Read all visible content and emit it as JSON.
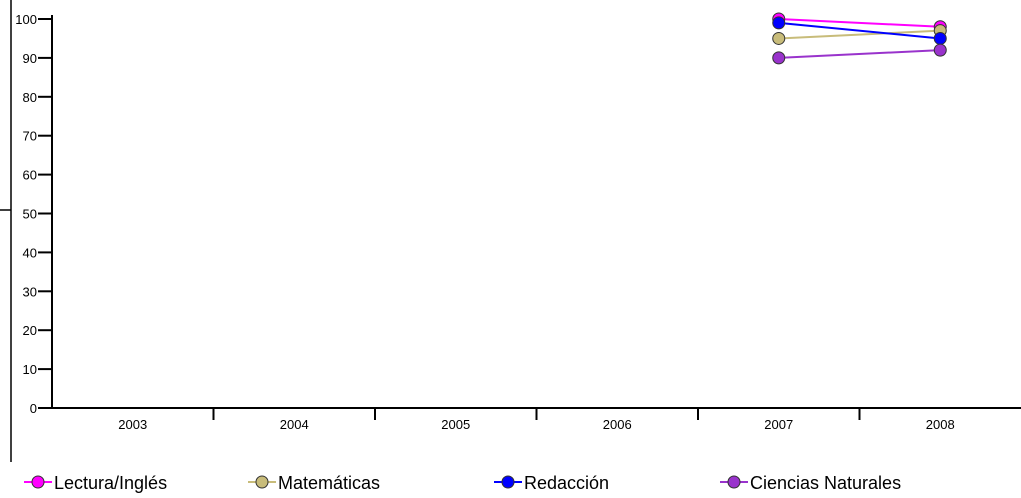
{
  "chart_data": {
    "type": "line",
    "title": "",
    "xlabel": "",
    "ylabel": "",
    "categories": [
      "2003",
      "2004",
      "2005",
      "2006",
      "2007",
      "2008"
    ],
    "ylim": [
      0,
      100
    ],
    "yticks": [
      "0",
      "10",
      "20",
      "30",
      "40",
      "50",
      "60",
      "70",
      "80",
      "90",
      "100"
    ],
    "grid": false,
    "legend_position": "bottom",
    "series": [
      {
        "name": "Lectura/Inglés",
        "color": "#ff00ff",
        "values": [
          null,
          null,
          null,
          null,
          100,
          98
        ]
      },
      {
        "name": "Matemáticas",
        "color": "#c8bc7a",
        "values": [
          null,
          null,
          null,
          null,
          95,
          97
        ]
      },
      {
        "name": "Redacción",
        "color": "#0000ff",
        "values": [
          null,
          null,
          null,
          null,
          99,
          95
        ]
      },
      {
        "name": "Ciencias Naturales",
        "color": "#9933cc",
        "values": [
          null,
          null,
          null,
          null,
          90,
          92
        ]
      }
    ]
  }
}
